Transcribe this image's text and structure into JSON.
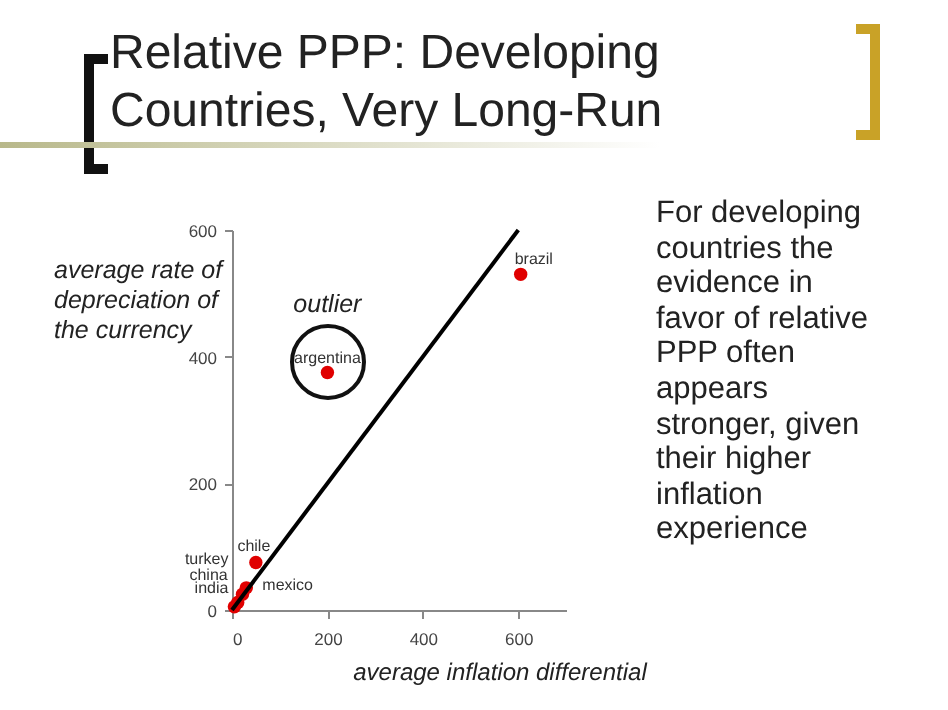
{
  "chart_data": {
    "type": "scatter",
    "title": "Relative PPP: Developing Countries, Very Long-Run",
    "xlabel": "average inflation differential",
    "ylabel": "average rate of depreciation of the currency",
    "annotations": [
      {
        "text": "outlier",
        "x": 200,
        "y": 375
      },
      "For developing countries the evidence in favor of relative PPP often appears stronger, given their higher inflation experience"
    ],
    "xlim": [
      0,
      700
    ],
    "ylim": [
      0,
      600
    ],
    "xticks": [
      0,
      200,
      400,
      600
    ],
    "yticks": [
      0,
      200,
      400,
      600
    ],
    "grid": false,
    "series": [
      {
        "name": "brazil",
        "color": "#e00000",
        "x": [
          605
        ],
        "values": [
          530
        ]
      },
      {
        "name": "argentina",
        "color": "#e00000",
        "x": [
          200
        ],
        "values": [
          375
        ]
      },
      {
        "name": "chile",
        "color": "#e00000",
        "x": [
          50
        ],
        "values": [
          75
        ]
      },
      {
        "name": "mexico",
        "color": "#e00000",
        "x": [
          30
        ],
        "values": [
          35
        ]
      },
      {
        "name": "turkey",
        "color": "#e00000",
        "x": [
          22
        ],
        "values": [
          25
        ]
      },
      {
        "name": "china",
        "color": "#e00000",
        "x": [
          12
        ],
        "values": [
          12
        ]
      },
      {
        "name": "india",
        "color": "#e00000",
        "x": [
          5
        ],
        "values": [
          5
        ]
      },
      {
        "type": "line",
        "color": "#000000",
        "x": [
          0,
          600
        ],
        "values": [
          0,
          600
        ]
      }
    ]
  }
}
